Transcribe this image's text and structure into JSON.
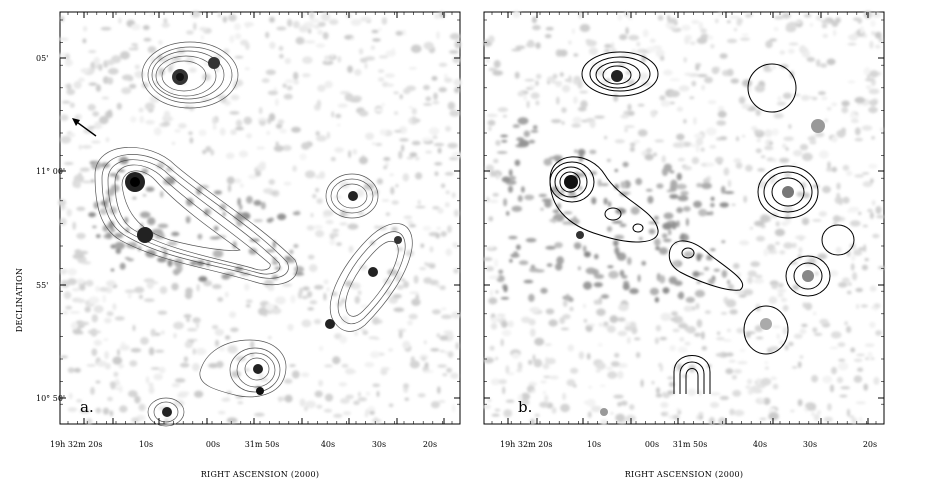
{
  "figure": {
    "ylabel": "DECLINATION",
    "dec_ticks": {
      "labels": [
        "05'",
        "11° 00'",
        "55'",
        "10° 50'"
      ]
    },
    "panels": [
      {
        "label": "a.",
        "xlabel": "RIGHT ASCENSION  (2000)",
        "ra_ticks": [
          "19h 32m 20s",
          "10s",
          "00s",
          "31m 50s",
          "40s",
          "30s",
          "20s"
        ]
      },
      {
        "label": "b.",
        "xlabel": "RIGHT ASCENSION  (2000)",
        "ra_ticks": [
          "19h 32m 20s",
          "10s",
          "00s",
          "31m 50s",
          "40s",
          "30s",
          "20s"
        ]
      }
    ]
  }
}
